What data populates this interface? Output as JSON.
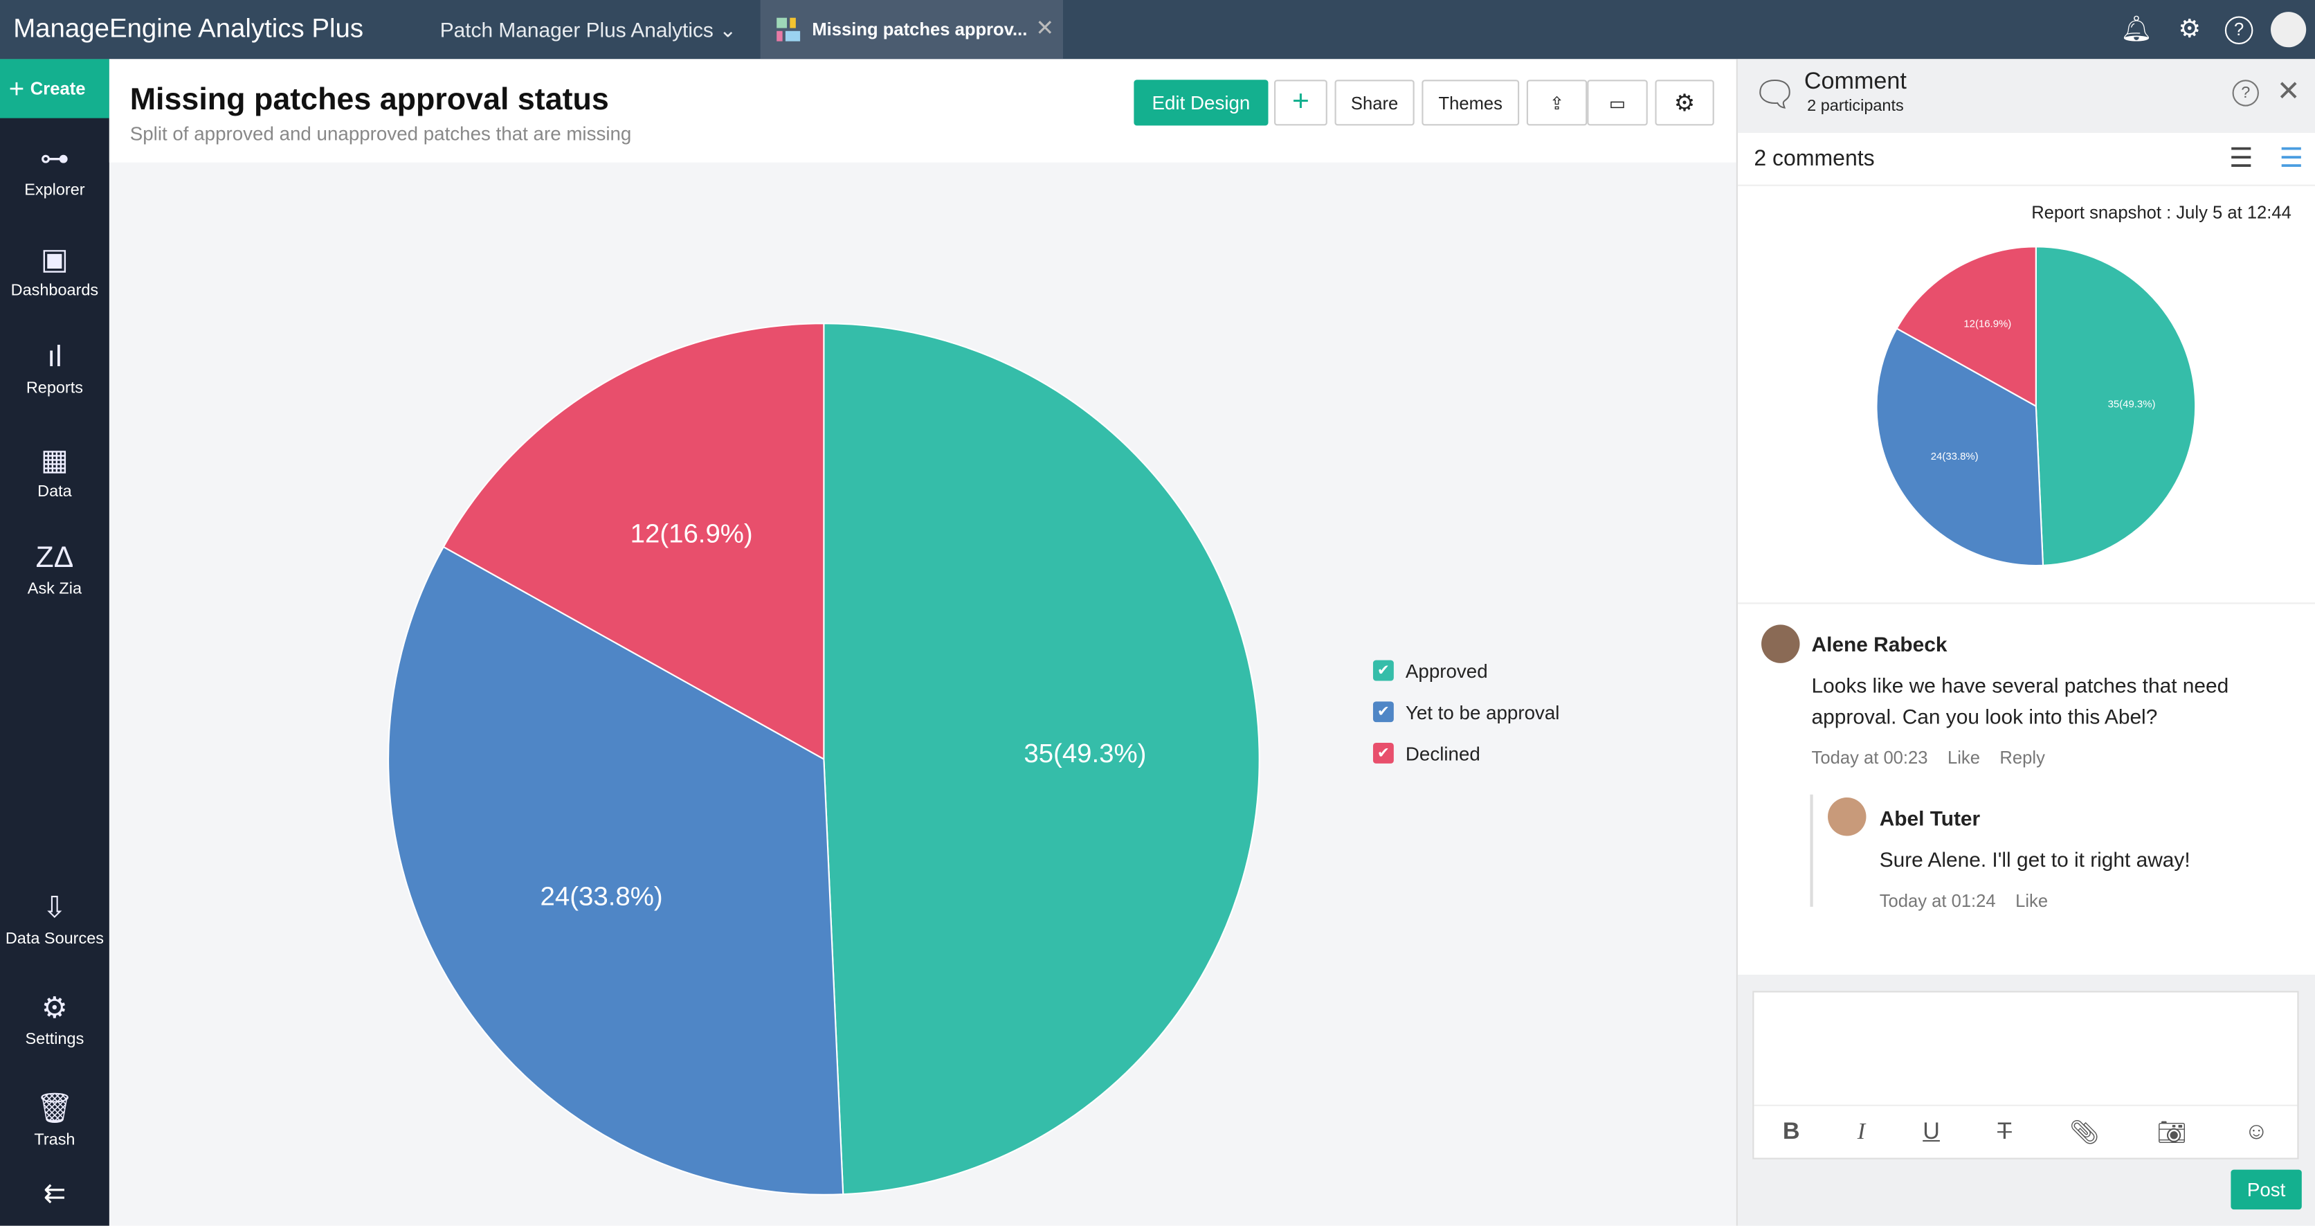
{
  "topbar": {
    "logo": "ManageEngine Analytics Plus",
    "workspace": "Patch Manager Plus Analytics",
    "tab": "Missing patches approv...",
    "icons": [
      "bell-icon",
      "gear-icon",
      "help-icon",
      "avatar"
    ]
  },
  "sidebar": {
    "create": "Create",
    "items": [
      {
        "label": "Explorer",
        "icon": "tree-icon"
      },
      {
        "label": "Dashboards",
        "icon": "grid-icon"
      },
      {
        "label": "Reports",
        "icon": "bars-icon"
      },
      {
        "label": "Data",
        "icon": "table-icon"
      },
      {
        "label": "Ask Zia",
        "icon": "zia-icon"
      },
      {
        "label": "Data Sources",
        "icon": "datasource-icon"
      },
      {
        "label": "Settings",
        "icon": "gear-icon"
      },
      {
        "label": "Trash",
        "icon": "trash-icon"
      }
    ]
  },
  "report": {
    "title": "Missing patches approval status",
    "subtitle": "Split of approved and unapproved patches that are missing",
    "toolbar": {
      "edit": "Edit Design",
      "share": "Share",
      "themes": "Themes"
    }
  },
  "chart_data": {
    "type": "pie",
    "series": [
      {
        "name": "Approved",
        "value": 35,
        "label": "35(49.3%)",
        "color": "#35bda9"
      },
      {
        "name": "Yet to be approval",
        "value": 24,
        "label": "24(33.8%)",
        "color": "#4f86c6"
      },
      {
        "name": "Declined",
        "value": 12,
        "label": "12(16.9%)",
        "color": "#e84f6c"
      }
    ],
    "legend": "right"
  },
  "comment_panel": {
    "title": "Comment",
    "participants": "2 participants",
    "count": "2 comments",
    "snapshot": "Report snapshot : July 5 at 12:44",
    "comments": [
      {
        "author": "Alene Rabeck",
        "text": "Looks like we have several patches that need approval. Can you look into this Abel?",
        "time": "Today at 00:23",
        "like": "Like",
        "reply": "Reply"
      },
      {
        "author": "Abel Tuter",
        "text": "Sure Alene. I'll get to it right away!",
        "time": "Today at 01:24",
        "like": "Like"
      }
    ],
    "post": "Post"
  }
}
